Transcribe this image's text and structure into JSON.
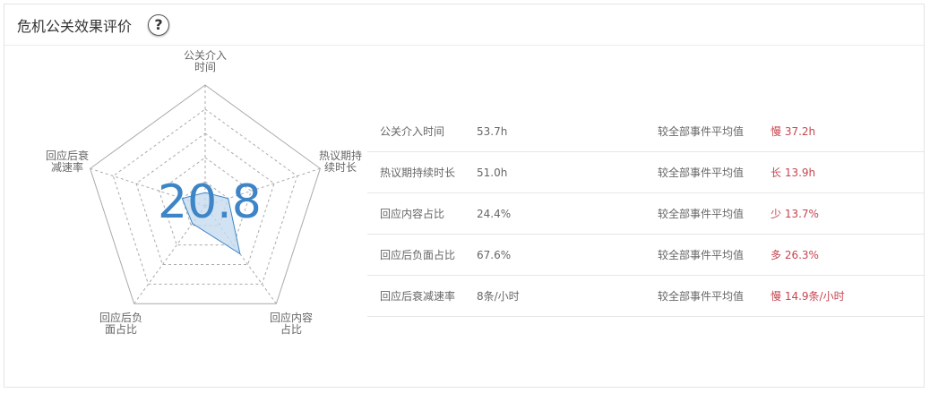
{
  "header": {
    "title": "危机公关效果评价",
    "help_icon": "question-circle-icon"
  },
  "radar": {
    "score": "20.8",
    "axes": [
      "公关介入\n时间",
      "热议期持\n续时长",
      "回应内容\n占比",
      "回应后负\n面占比",
      "回应后衰\n减速率"
    ],
    "values": [
      0.11,
      0.2,
      0.49,
      0.18,
      0.2
    ],
    "levels": 5,
    "fill_color": "#c6dbf0",
    "line_color": "#3d85c6"
  },
  "table": {
    "rows": [
      {
        "name": "公关介入时间",
        "value": "53.7h",
        "compare": "较全部事件平均值",
        "diff": "慢 37.2h"
      },
      {
        "name": "热议期持续时长",
        "value": "51.0h",
        "compare": "较全部事件平均值",
        "diff": "长 13.9h"
      },
      {
        "name": "回应内容占比",
        "value": "24.4%",
        "compare": "较全部事件平均值",
        "diff": "少 13.7%"
      },
      {
        "name": "回应后负面占比",
        "value": "67.6%",
        "compare": "较全部事件平均值",
        "diff": "多 26.3%"
      },
      {
        "name": "回应后衰减速率",
        "value": "8条/小时",
        "compare": "较全部事件平均值",
        "diff": "慢 14.9条/小时"
      }
    ]
  },
  "colors": {
    "diff": "#c8454f",
    "score": "#3d85c6"
  }
}
